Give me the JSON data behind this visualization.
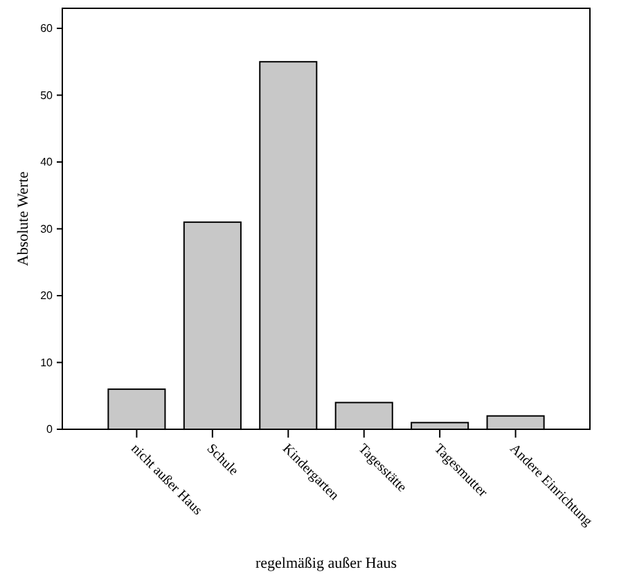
{
  "chart_data": {
    "type": "bar",
    "xlabel": "regelmäßig außer Haus",
    "ylabel": "Absolute Werte",
    "categories": [
      "nicht außer Haus",
      "Schule",
      "Kindergarten",
      "Tagesstätte",
      "Tagesmutter",
      "Andere Einrichtung"
    ],
    "values": [
      6,
      31,
      55,
      4,
      1,
      2
    ],
    "color": "#c8c8c8",
    "ylim": [
      0,
      63
    ],
    "yticks": [
      0,
      10,
      20,
      30,
      40,
      50,
      60
    ],
    "grid": false
  }
}
